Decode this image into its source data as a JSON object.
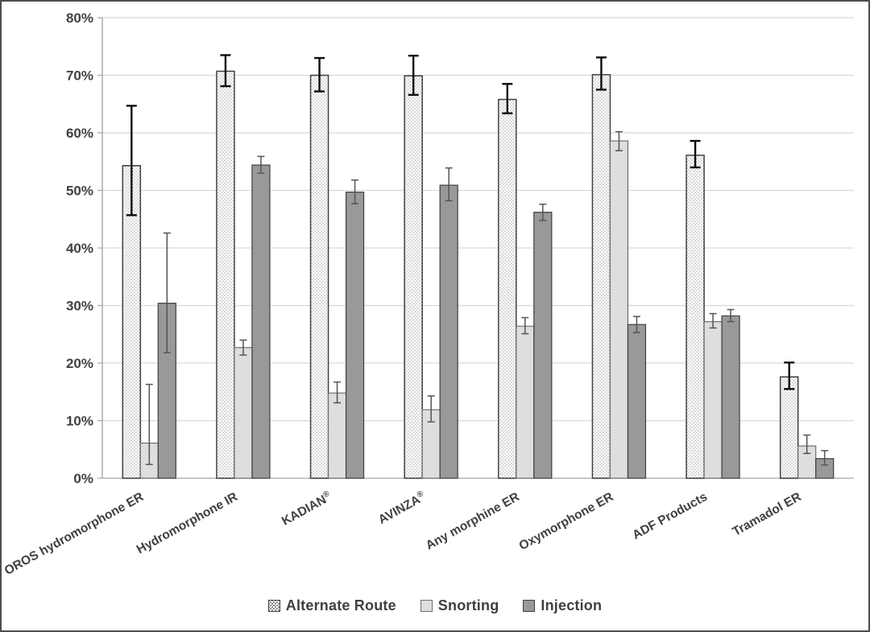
{
  "figure": {
    "background": "#ffffff",
    "border_color": "#4d4d4d"
  },
  "chart_data": {
    "type": "bar",
    "title": "",
    "xlabel": "",
    "ylabel": "",
    "grid": "horizontal",
    "legend_position": "bottom",
    "error_bars": true,
    "ylim": [
      0,
      80
    ],
    "ytick_step": 10,
    "ytick_labels": [
      "0%",
      "10%",
      "20%",
      "30%",
      "40%",
      "50%",
      "60%",
      "70%",
      "80%"
    ],
    "categories": [
      "OROS hydromorphone ER",
      "Hydromorphone IR",
      "KADIAN®",
      "AVINZA®",
      "Any morphine ER",
      "Oxymorphone ER",
      "ADF Products",
      "Tramadol ER"
    ],
    "series": [
      {
        "name": "Alternate Route",
        "style": "dotted",
        "values": [
          54.3,
          70.7,
          70.0,
          69.9,
          65.8,
          70.1,
          56.1,
          17.6
        ],
        "err_lo": [
          45.7,
          68.1,
          67.2,
          66.6,
          63.4,
          67.5,
          54.0,
          15.5
        ],
        "err_hi": [
          64.7,
          73.5,
          73.0,
          73.4,
          68.5,
          73.1,
          58.6,
          20.1
        ]
      },
      {
        "name": "Snorting",
        "style": "light",
        "values": [
          6.1,
          22.7,
          14.8,
          11.9,
          26.4,
          58.6,
          27.2,
          5.6
        ],
        "err_lo": [
          2.4,
          21.4,
          13.1,
          9.8,
          25.1,
          56.9,
          26.1,
          4.3
        ],
        "err_hi": [
          16.3,
          24.0,
          16.7,
          14.3,
          27.9,
          60.2,
          28.6,
          7.5
        ]
      },
      {
        "name": "Injection",
        "style": "dark",
        "values": [
          30.4,
          54.4,
          49.7,
          50.9,
          46.2,
          26.7,
          28.2,
          3.4
        ],
        "err_lo": [
          21.8,
          53.0,
          47.7,
          48.2,
          44.8,
          25.3,
          27.2,
          2.3
        ],
        "err_hi": [
          42.6,
          55.9,
          51.8,
          53.9,
          47.6,
          28.1,
          29.3,
          4.8
        ]
      }
    ]
  },
  "colors": {
    "alternate_fill": "#ffffff",
    "alternate_dot": "#6e6e6e",
    "alternate_border": "#404040",
    "snorting_fill": "#dedede",
    "snorting_border": "#6e6e6e",
    "injection_fill": "#999999",
    "injection_border": "#3f3f3f",
    "gridline": "#d9d9d9",
    "axis_line": "#a6a6a6",
    "error_bar_primary": "#0d0d0d",
    "error_bar_secondary": "#545454",
    "text": "#404040"
  }
}
